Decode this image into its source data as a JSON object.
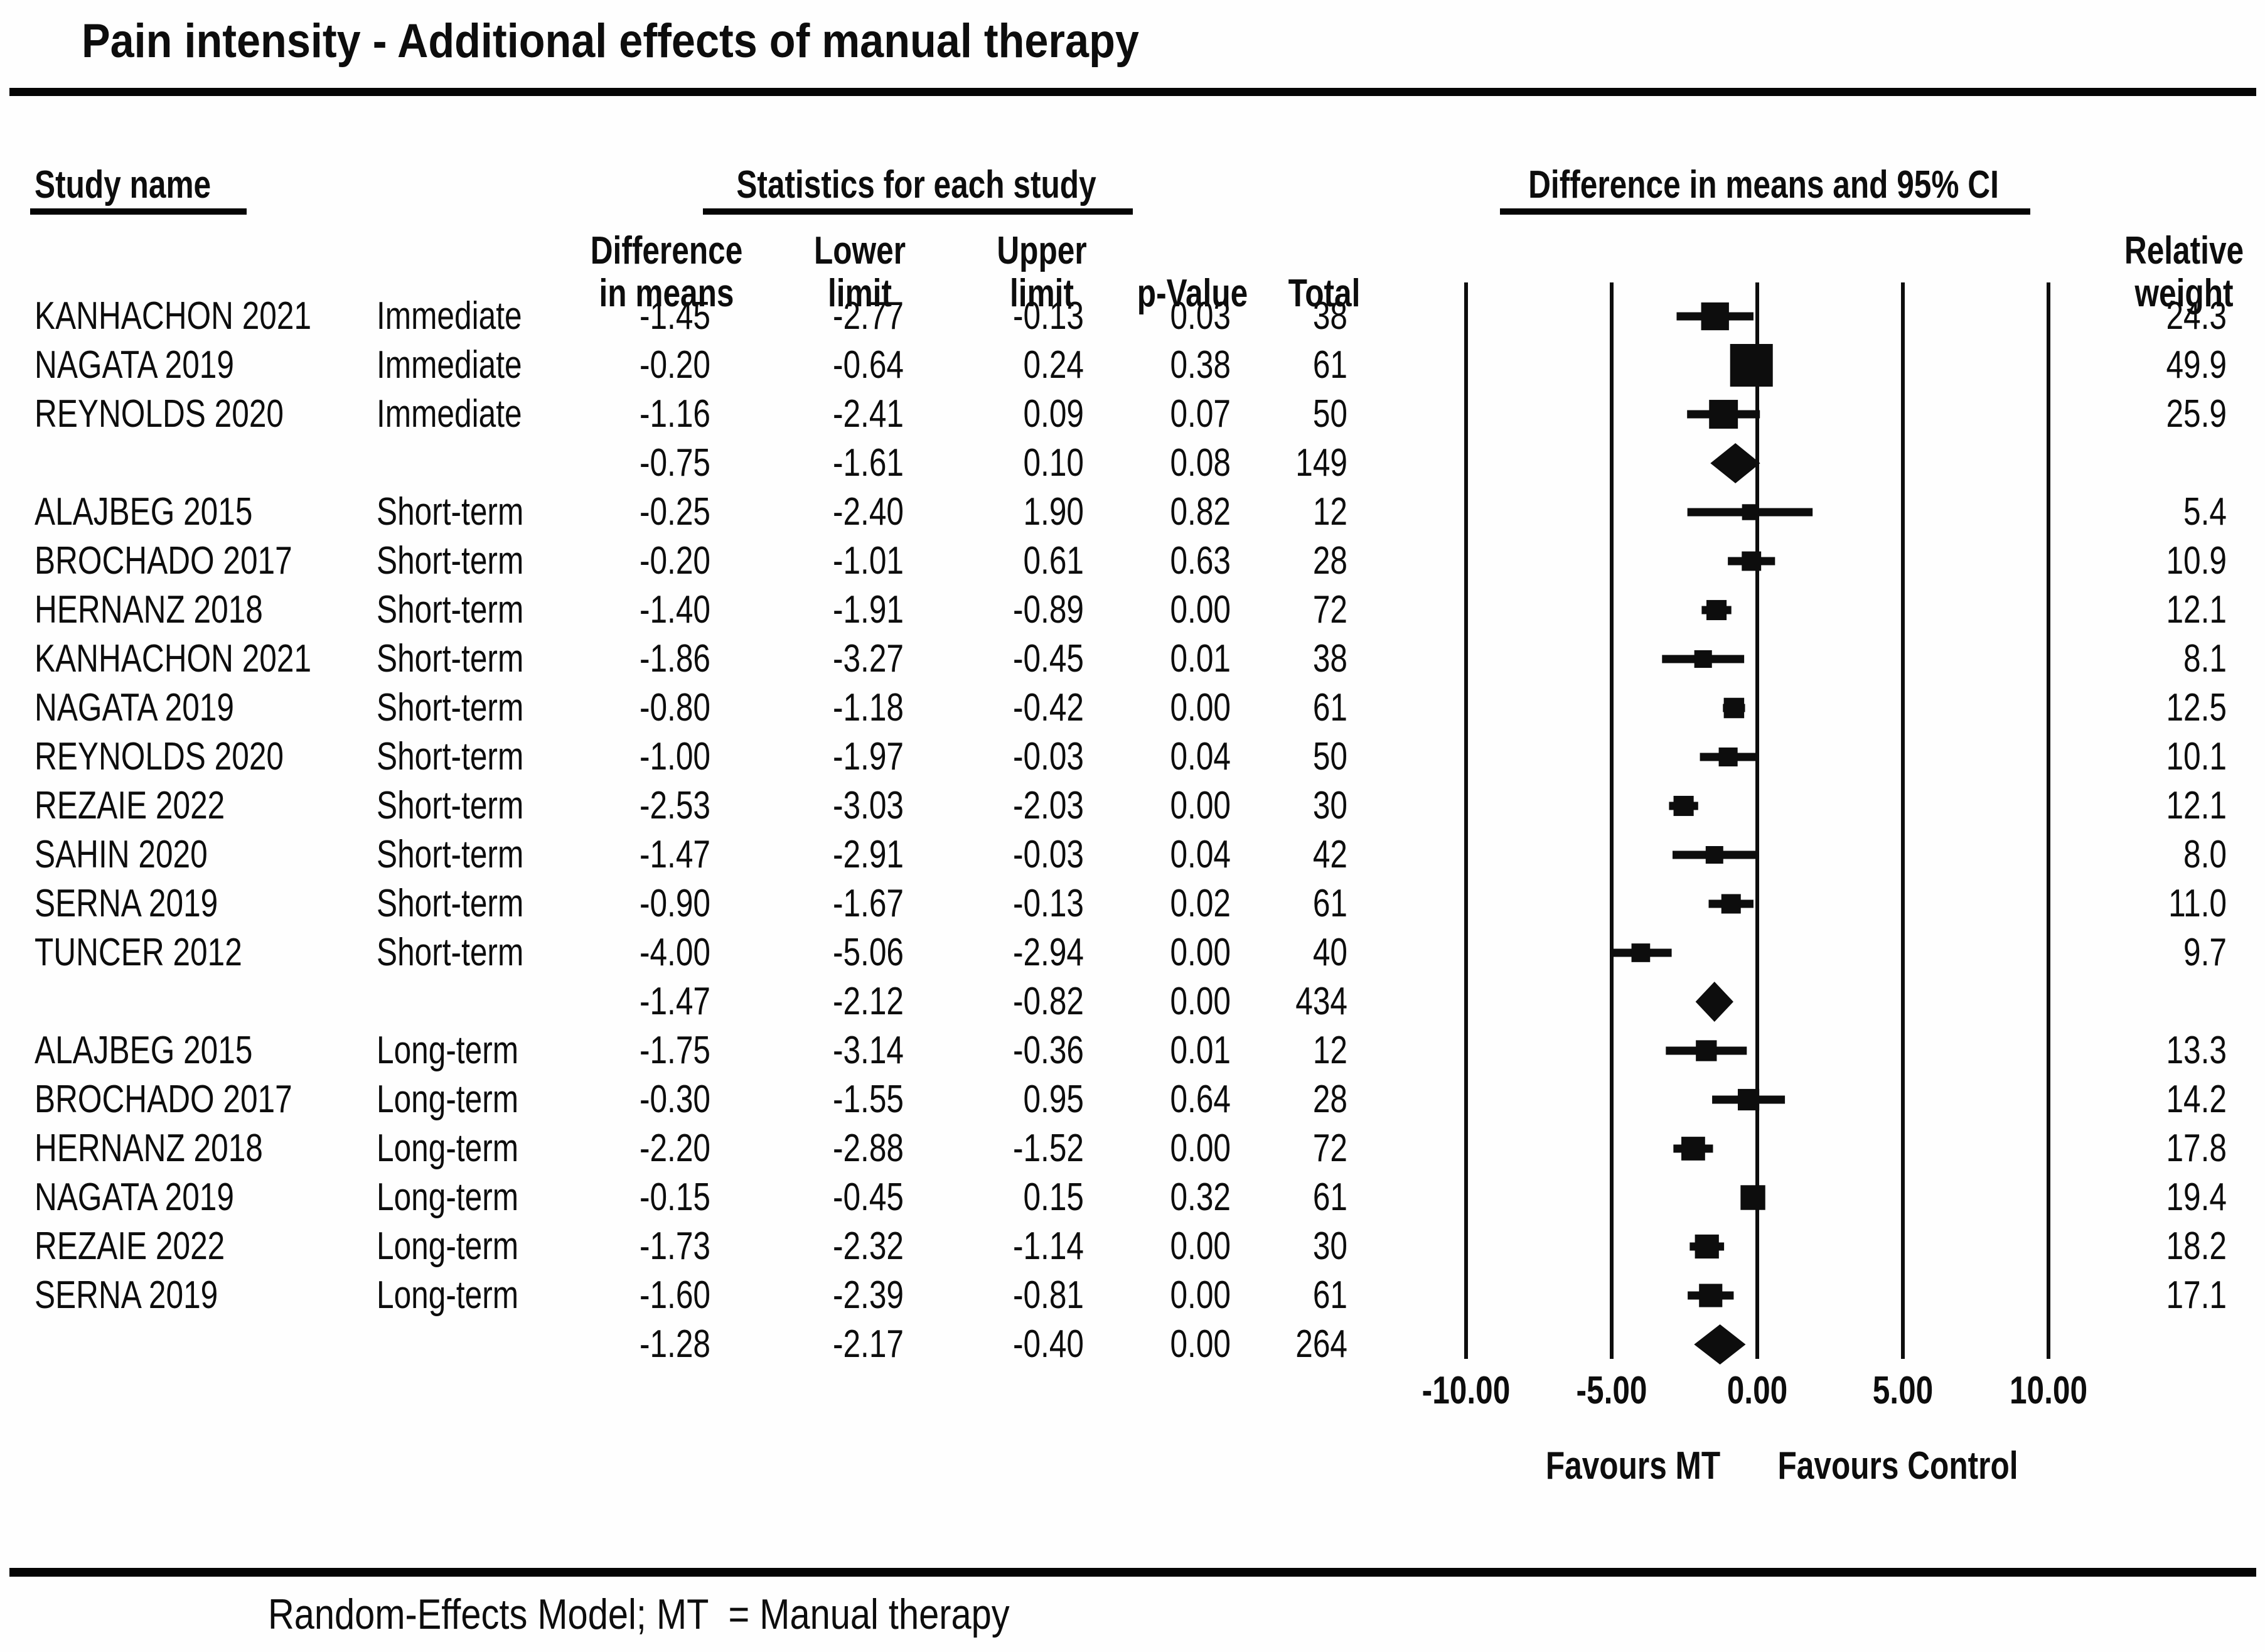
{
  "title": "Pain intensity - Additional effects of manual therapy",
  "header": {
    "study_col": "Study name",
    "stats_group": "Statistics for each study",
    "plot_group": "Difference in means and 95% CI",
    "diff_1": "Difference",
    "diff_2": "in means",
    "lower_1": "Lower",
    "lower_2": "limit",
    "upper_1": "Upper",
    "upper_2": "limit",
    "p_value": "p-Value",
    "total": "Total",
    "weight_1": "Relative",
    "weight_2": "weight"
  },
  "axis": {
    "tick_labels": [
      "-10.00",
      "-5.00",
      "0.00",
      "5.00",
      "10.00"
    ],
    "tick_values": [
      -10,
      -5,
      0,
      5,
      10
    ],
    "favours_left": "Favours MT",
    "favours_right": "Favours Control"
  },
  "footer": "Random-Effects Model; MT  = Manual therapy",
  "colors": {
    "ink": "#0d0d0d",
    "background": "#fefefe"
  },
  "chart_data": {
    "type": "forest",
    "title": "Pain intensity - Additional effects of manual therapy",
    "xlabel_left": "Favours MT",
    "xlabel_right": "Favours Control",
    "xlim": [
      -10,
      10
    ],
    "x_ticks": [
      -10,
      -5,
      0,
      5,
      10
    ],
    "grid": "vertical-lines",
    "legend_position": "none",
    "rows": [
      {
        "study": "KANHACHON 2021",
        "time": "Immediate",
        "diff": -1.45,
        "lower": -2.77,
        "upper": -0.13,
        "p": 0.03,
        "total": 38,
        "weight": 24.3,
        "kind": "study"
      },
      {
        "study": "NAGATA 2019",
        "time": "Immediate",
        "diff": -0.2,
        "lower": -0.64,
        "upper": 0.24,
        "p": 0.38,
        "total": 61,
        "weight": 49.9,
        "kind": "study"
      },
      {
        "study": "REYNOLDS 2020",
        "time": "Immediate",
        "diff": -1.16,
        "lower": -2.41,
        "upper": 0.09,
        "p": 0.07,
        "total": 50,
        "weight": 25.9,
        "kind": "study"
      },
      {
        "study": "",
        "time": "",
        "diff": -0.75,
        "lower": -1.61,
        "upper": 0.1,
        "p": 0.08,
        "total": 149,
        "weight": null,
        "kind": "summary"
      },
      {
        "study": "ALAJBEG 2015",
        "time": "Short-term",
        "diff": -0.25,
        "lower": -2.4,
        "upper": 1.9,
        "p": 0.82,
        "total": 12,
        "weight": 5.4,
        "kind": "study"
      },
      {
        "study": "BROCHADO 2017",
        "time": "Short-term",
        "diff": -0.2,
        "lower": -1.01,
        "upper": 0.61,
        "p": 0.63,
        "total": 28,
        "weight": 10.9,
        "kind": "study"
      },
      {
        "study": "HERNANZ 2018",
        "time": "Short-term",
        "diff": -1.4,
        "lower": -1.91,
        "upper": -0.89,
        "p": 0.0,
        "total": 72,
        "weight": 12.1,
        "kind": "study"
      },
      {
        "study": "KANHACHON 2021",
        "time": "Short-term",
        "diff": -1.86,
        "lower": -3.27,
        "upper": -0.45,
        "p": 0.01,
        "total": 38,
        "weight": 8.1,
        "kind": "study"
      },
      {
        "study": "NAGATA 2019",
        "time": "Short-term",
        "diff": -0.8,
        "lower": -1.18,
        "upper": -0.42,
        "p": 0.0,
        "total": 61,
        "weight": 12.5,
        "kind": "study"
      },
      {
        "study": "REYNOLDS 2020",
        "time": "Short-term",
        "diff": -1.0,
        "lower": -1.97,
        "upper": -0.03,
        "p": 0.04,
        "total": 50,
        "weight": 10.1,
        "kind": "study"
      },
      {
        "study": "REZAIE 2022",
        "time": "Short-term",
        "diff": -2.53,
        "lower": -3.03,
        "upper": -2.03,
        "p": 0.0,
        "total": 30,
        "weight": 12.1,
        "kind": "study"
      },
      {
        "study": "SAHIN 2020",
        "time": "Short-term",
        "diff": -1.47,
        "lower": -2.91,
        "upper": -0.03,
        "p": 0.04,
        "total": 42,
        "weight": 8.0,
        "kind": "study"
      },
      {
        "study": "SERNA 2019",
        "time": "Short-term",
        "diff": -0.9,
        "lower": -1.67,
        "upper": -0.13,
        "p": 0.02,
        "total": 61,
        "weight": 11.0,
        "kind": "study"
      },
      {
        "study": "TUNCER 2012",
        "time": "Short-term",
        "diff": -4.0,
        "lower": -5.06,
        "upper": -2.94,
        "p": 0.0,
        "total": 40,
        "weight": 9.7,
        "kind": "study"
      },
      {
        "study": "",
        "time": "",
        "diff": -1.47,
        "lower": -2.12,
        "upper": -0.82,
        "p": 0.0,
        "total": 434,
        "weight": null,
        "kind": "summary"
      },
      {
        "study": "ALAJBEG 2015",
        "time": "Long-term",
        "diff": -1.75,
        "lower": -3.14,
        "upper": -0.36,
        "p": 0.01,
        "total": 12,
        "weight": 13.3,
        "kind": "study"
      },
      {
        "study": "BROCHADO 2017",
        "time": "Long-term",
        "diff": -0.3,
        "lower": -1.55,
        "upper": 0.95,
        "p": 0.64,
        "total": 28,
        "weight": 14.2,
        "kind": "study"
      },
      {
        "study": "HERNANZ 2018",
        "time": "Long-term",
        "diff": -2.2,
        "lower": -2.88,
        "upper": -1.52,
        "p": 0.0,
        "total": 72,
        "weight": 17.8,
        "kind": "study"
      },
      {
        "study": "NAGATA 2019",
        "time": "Long-term",
        "diff": -0.15,
        "lower": -0.45,
        "upper": 0.15,
        "p": 0.32,
        "total": 61,
        "weight": 19.4,
        "kind": "study"
      },
      {
        "study": "REZAIE 2022",
        "time": "Long-term",
        "diff": -1.73,
        "lower": -2.32,
        "upper": -1.14,
        "p": 0.0,
        "total": 30,
        "weight": 18.2,
        "kind": "study"
      },
      {
        "study": "SERNA 2019",
        "time": "Long-term",
        "diff": -1.6,
        "lower": -2.39,
        "upper": -0.81,
        "p": 0.0,
        "total": 61,
        "weight": 17.1,
        "kind": "study"
      },
      {
        "study": "",
        "time": "",
        "diff": -1.28,
        "lower": -2.17,
        "upper": -0.4,
        "p": 0.0,
        "total": 264,
        "weight": null,
        "kind": "summary"
      }
    ]
  }
}
